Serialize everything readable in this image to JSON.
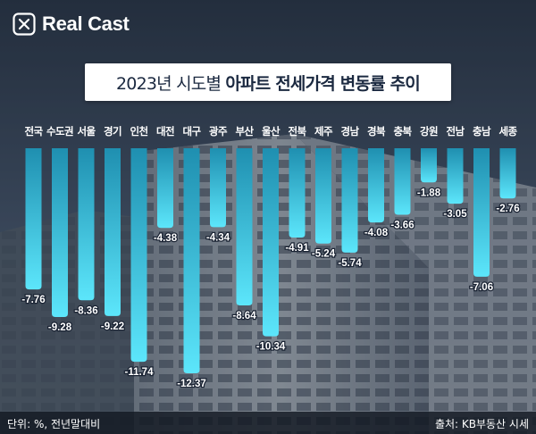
{
  "logo": {
    "name": "Real Cast"
  },
  "title": {
    "light": "2023년 시도별 ",
    "bold": "아파트 전세가격 변동률 추이"
  },
  "footer": {
    "unit": "단위: %, 전년말대비",
    "source": "출처: KB부동산 시세"
  },
  "colors": {
    "bar_top": "#1f8fb0",
    "bar_bottom": "#5ce6fb",
    "value_label": "#ffffff",
    "category_label": "#ffffff"
  },
  "chart_data": {
    "type": "bar",
    "orientation": "vertical-negative",
    "categories": [
      "전국",
      "수도권",
      "서울",
      "경기",
      "인천",
      "대전",
      "대구",
      "광주",
      "부산",
      "울산",
      "전북",
      "제주",
      "경남",
      "경북",
      "충북",
      "강원",
      "전남",
      "충남",
      "세종"
    ],
    "values": [
      -7.76,
      -9.28,
      -8.36,
      -9.22,
      -11.74,
      -4.38,
      -12.37,
      -4.34,
      -8.64,
      -10.34,
      -4.91,
      -5.24,
      -5.74,
      -4.08,
      -3.66,
      -1.88,
      -3.05,
      -7.06,
      -2.76
    ],
    "labels": [
      "-7.76",
      "-9.28",
      "-8.36",
      "-9.22",
      "-11.74",
      "-4.38",
      "-12.37",
      "-4.34",
      "-8.64",
      "-10.34",
      "-4.91",
      "-5.24",
      "-5.74",
      "-4.08",
      "-3.66",
      "-1.88",
      "-3.05",
      "-7.06",
      "-2.76"
    ],
    "title": "2023년 시도별 아파트 전세가격 변동률 추이",
    "xlabel": "",
    "ylabel": "",
    "ylim": [
      -12.37,
      0
    ]
  }
}
